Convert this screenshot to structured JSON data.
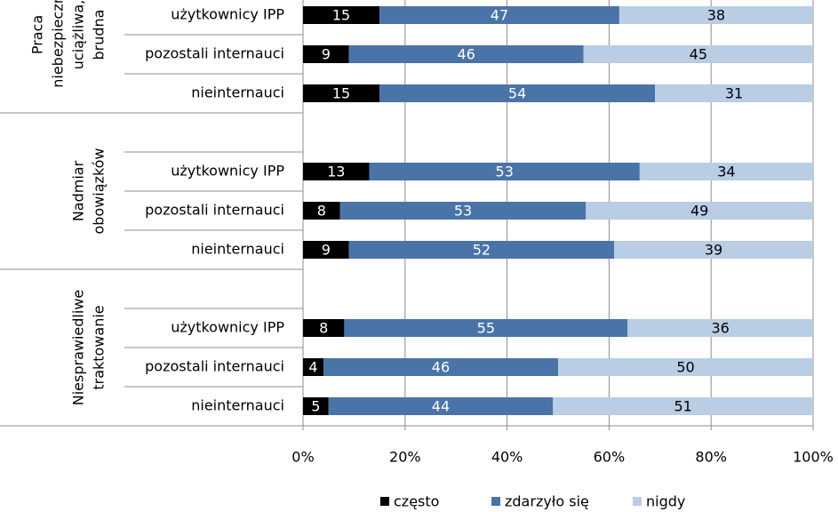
{
  "chart_data": {
    "type": "stacked-bar-100",
    "groups": [
      {
        "label_lines": [
          "Praca",
          "niebezpieczna,",
          "uciążliwa,",
          "brudna"
        ]
      },
      {
        "label_lines": [
          "Nadmiar",
          "obowiązków"
        ]
      },
      {
        "label_lines": [
          "Niesprawiedliwe",
          "traktowanie"
        ]
      }
    ],
    "categories": [
      "użytkownicy IPP",
      "pozostali internauci",
      "nieinternauci",
      "użytkownicy IPP",
      "pozostali internauci",
      "nieinternauci",
      "użytkownicy IPP",
      "pozostali internauci",
      "nieinternauci"
    ],
    "series": [
      {
        "name": "często",
        "color": "#000000",
        "values": [
          15,
          9,
          15,
          13,
          8,
          9,
          8,
          4,
          5
        ]
      },
      {
        "name": "zdarzyło się",
        "color": "#4a73a8",
        "values": [
          47,
          46,
          54,
          53,
          53,
          52,
          55,
          46,
          44
        ]
      },
      {
        "name": "nigdy",
        "color": "#b9cde5",
        "values": [
          38,
          45,
          31,
          34,
          49,
          39,
          36,
          50,
          51
        ]
      }
    ],
    "xlim": [
      0,
      100
    ],
    "xticks": [
      {
        "value": 0,
        "label": "0%"
      },
      {
        "value": 20,
        "label": "20%"
      },
      {
        "value": 40,
        "label": "40%"
      },
      {
        "value": 60,
        "label": "60%"
      },
      {
        "value": 80,
        "label": "80%"
      },
      {
        "value": 100,
        "label": "100%"
      }
    ],
    "grid": true
  }
}
